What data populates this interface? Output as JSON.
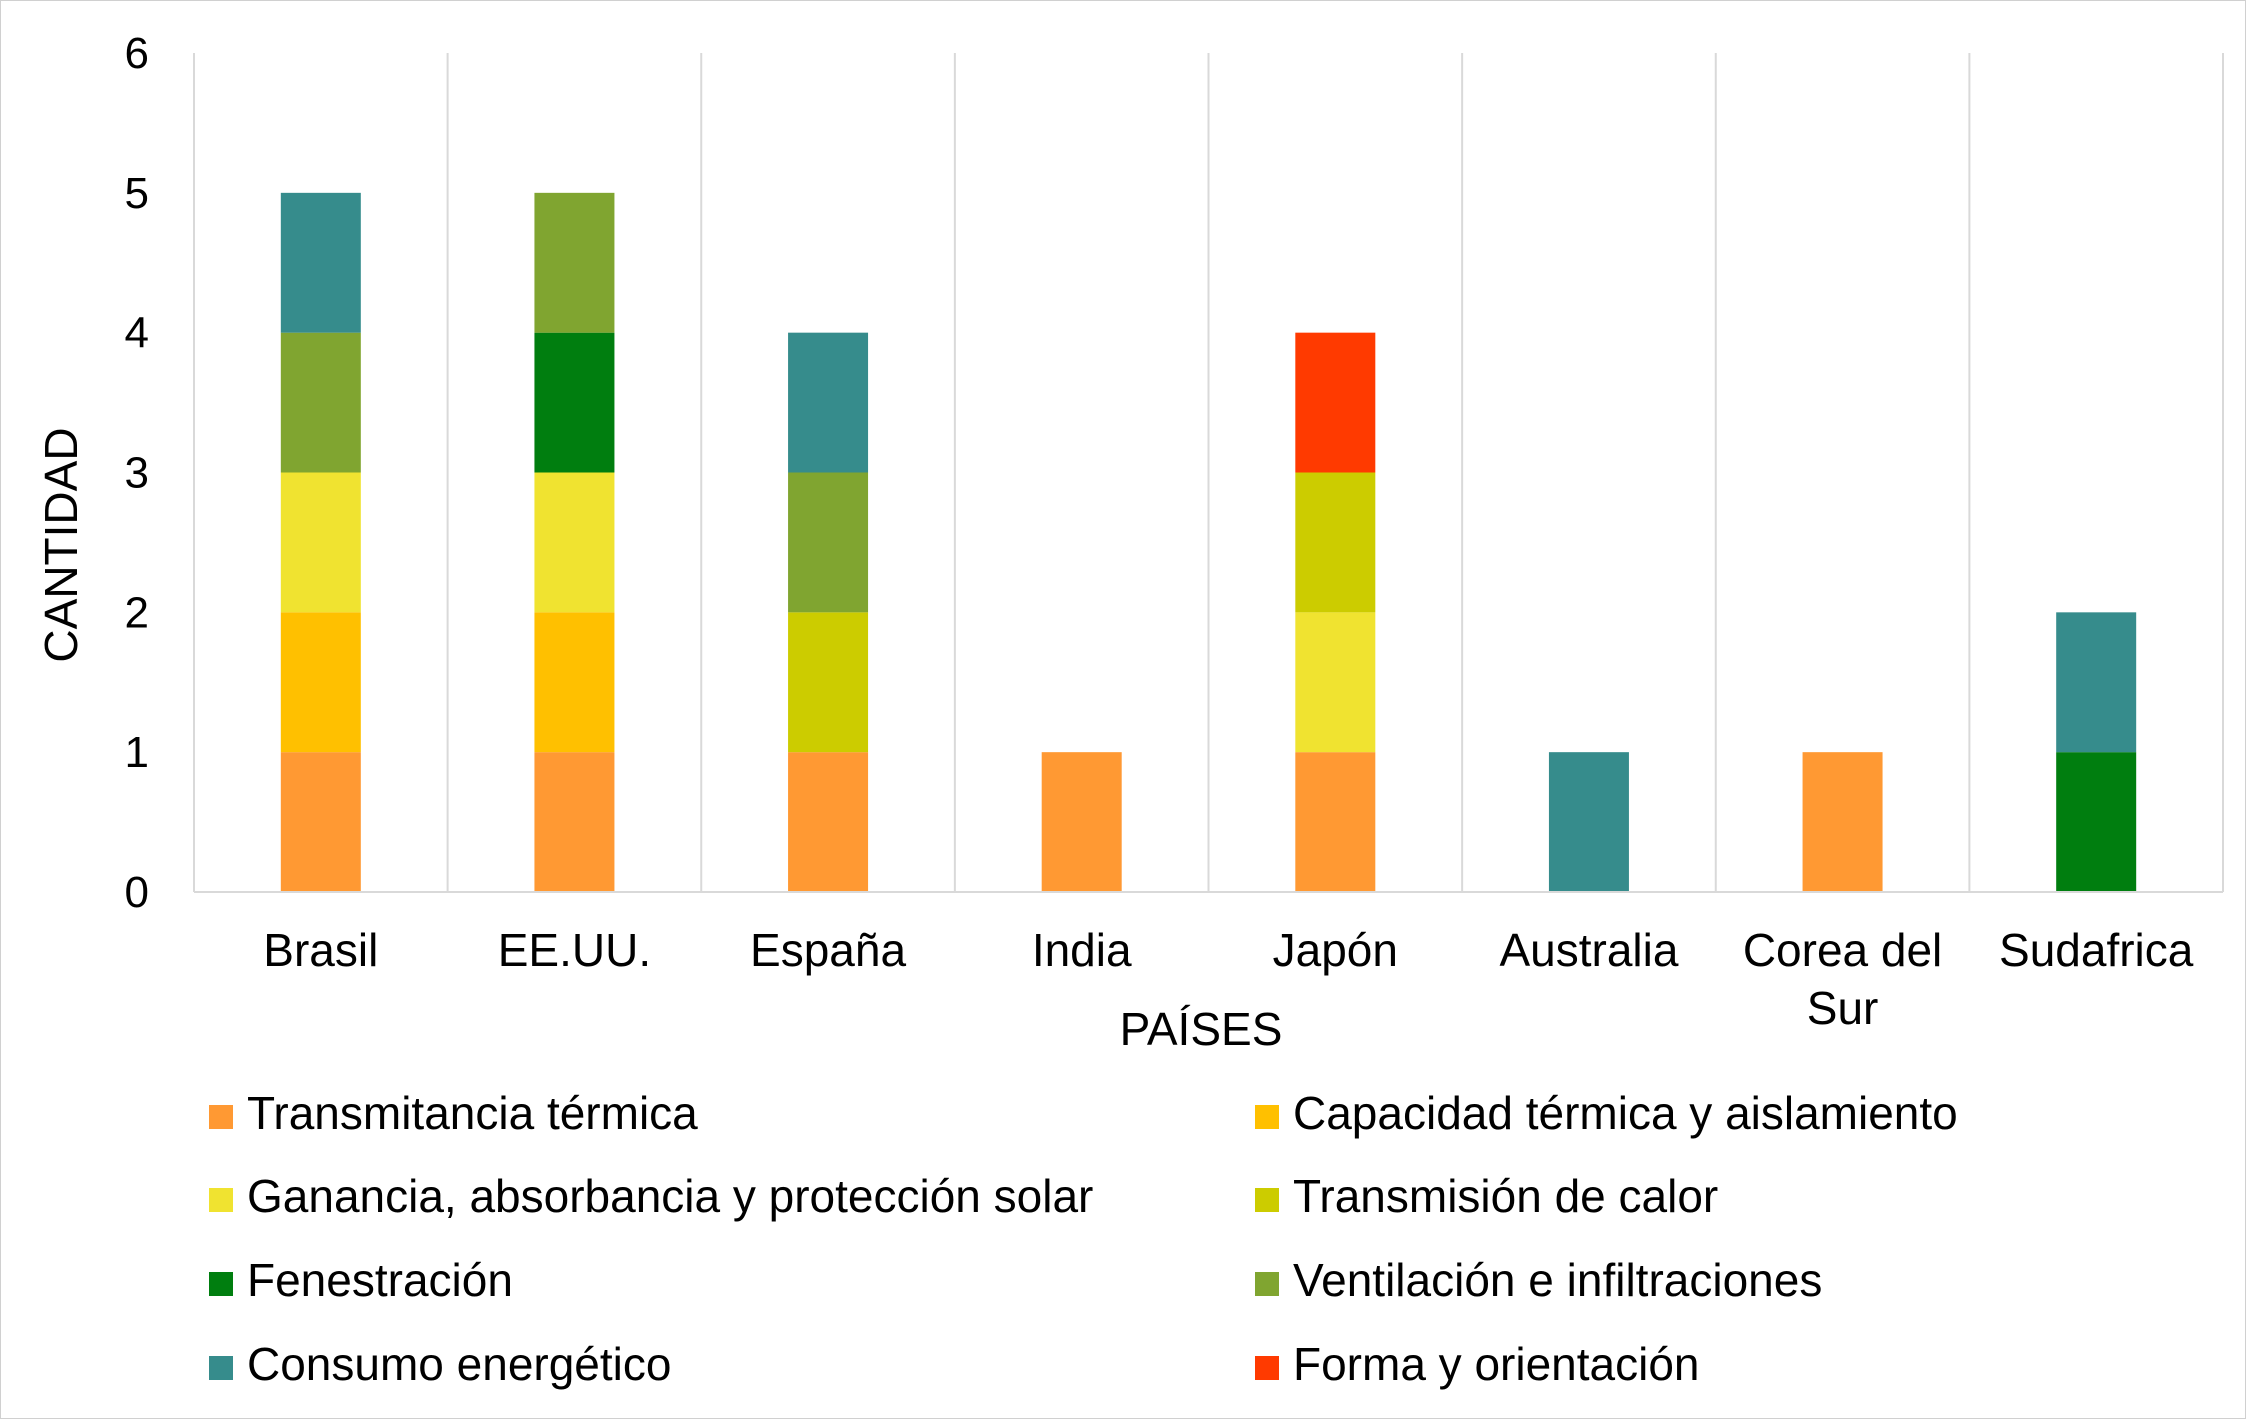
{
  "chart_data": {
    "type": "bar",
    "stacked": true,
    "title": "",
    "xlabel": "PAÍSES",
    "ylabel": "CANTIDAD",
    "ylim": [
      0,
      6
    ],
    "yticks": [
      "0",
      "1",
      "2",
      "3",
      "4",
      "5",
      "6"
    ],
    "grid": "vertical category separators",
    "legend_position": "bottom",
    "categories": [
      [
        "Brasil"
      ],
      [
        "EE.UU."
      ],
      [
        "España"
      ],
      [
        "India"
      ],
      [
        "Japón"
      ],
      [
        "Australia"
      ],
      [
        "Corea del",
        "Sur"
      ],
      [
        "Sudafrica"
      ]
    ],
    "series": [
      {
        "name": "Transmitancia térmica",
        "color": "#FF9933",
        "values": [
          1,
          1,
          1,
          1,
          1,
          0,
          1,
          0
        ]
      },
      {
        "name": "Capacidad térmica y aislamiento",
        "color": "#FFC000",
        "values": [
          1,
          1,
          0,
          0,
          0,
          0,
          0,
          0
        ]
      },
      {
        "name": "Ganancia, absorbancia y protección solar",
        "color": "#F0E330",
        "values": [
          1,
          1,
          0,
          0,
          1,
          0,
          0,
          0
        ]
      },
      {
        "name": "Transmisión de calor",
        "color": "#CCCC00",
        "values": [
          0,
          0,
          1,
          0,
          1,
          0,
          0,
          0
        ]
      },
      {
        "name": "Fenestración",
        "color": "#007E0F",
        "values": [
          0,
          1,
          0,
          0,
          0,
          0,
          0,
          1
        ]
      },
      {
        "name": "Ventilación e infiltraciones",
        "color": "#80A530",
        "values": [
          1,
          1,
          1,
          0,
          0,
          0,
          0,
          0
        ]
      },
      {
        "name": "Consumo energético",
        "color": "#368C8C",
        "values": [
          1,
          0,
          1,
          0,
          0,
          1,
          0,
          1
        ]
      },
      {
        "name": "Forma y orientación",
        "color": "#FF3A00",
        "values": [
          0,
          0,
          0,
          0,
          1,
          0,
          0,
          0
        ]
      }
    ]
  }
}
